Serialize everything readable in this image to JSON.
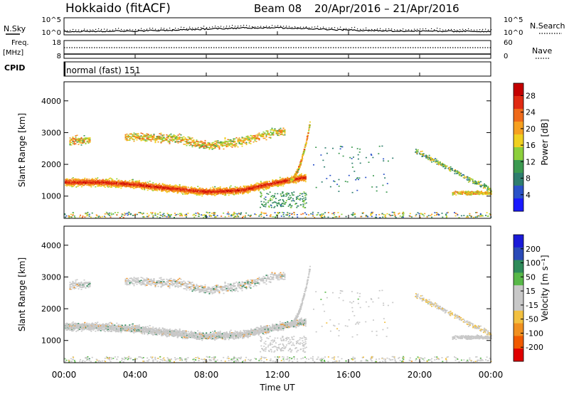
{
  "header": {
    "station": "Hokkaido (fitACF)",
    "beam": "Beam 08",
    "date_range": "20/Apr/2016 – 21/Apr/2016"
  },
  "strip_panels": {
    "nsky": {
      "label": "N.Sky",
      "right_label": "N.Search",
      "ticks_left": [
        "10^5",
        "10^0"
      ],
      "ticks_right": [
        "10^5",
        "10^0"
      ]
    },
    "freq": {
      "label_line1": "Freq.",
      "label_line2": "[MHz]",
      "right_label": "Nave",
      "ticks_left": [
        "18",
        "8"
      ],
      "ticks_right": [
        "60",
        "0"
      ]
    },
    "cpid": {
      "label": "CPID",
      "text": "normal (fast) 151"
    }
  },
  "colors": {
    "power": [
      "#1a1aff",
      "#2a52c8",
      "#2e7d6e",
      "#3c9a50",
      "#8ccf3c",
      "#f0d020",
      "#f6a020",
      "#ef6a1a",
      "#e02a12",
      "#c40000"
    ],
    "velocity": [
      "#e00000",
      "#f05a00",
      "#f09020",
      "#f2c040",
      "#c8c8c8",
      "#c8c8c8",
      "#58b848",
      "#2e8a5a",
      "#2a4ab8",
      "#1a1ad8"
    ],
    "gray": "#c8c8c8"
  },
  "chart_data": [
    {
      "type": "heatmap",
      "parameter": "Power",
      "ylabel": "Slant Range [km]",
      "yticks": [
        "1000",
        "2000",
        "3000",
        "4000"
      ],
      "ylim": [
        300,
        4600
      ],
      "xlim_hours": [
        0,
        24
      ],
      "colorbar_label": "Power [dB]",
      "colorbar_ticks": [
        "4",
        "8",
        "12",
        "16",
        "20",
        "24",
        "28"
      ],
      "colorbar_range": [
        0,
        31
      ],
      "main_band_center_km": [
        [
          0,
          1450
        ],
        [
          2,
          1450
        ],
        [
          4,
          1380
        ],
        [
          6,
          1250
        ],
        [
          8,
          1150
        ],
        [
          10,
          1200
        ],
        [
          12,
          1450
        ],
        [
          13.5,
          1600
        ]
      ],
      "upper_band_km": [
        [
          0.3,
          2750
        ],
        [
          4,
          2900
        ],
        [
          6.5,
          2800
        ],
        [
          8,
          2600
        ],
        [
          10,
          2750
        ],
        [
          12,
          3050
        ]
      ],
      "late_echo_hours": [
        20,
        24
      ]
    },
    {
      "type": "heatmap",
      "parameter": "Velocity",
      "ylabel": "Slant Range [km]",
      "yticks": [
        "1000",
        "2000",
        "3000",
        "4000"
      ],
      "ylim": [
        300,
        4600
      ],
      "xlim_hours": [
        0,
        24
      ],
      "colorbar_label": "Velocity [m s⁻¹]",
      "colorbar_ticks": [
        "200",
        "100",
        "50",
        "15",
        "-15",
        "-50",
        "-100",
        "-200"
      ],
      "colorbar_range": [
        -250,
        250
      ]
    }
  ],
  "x_axis": {
    "ticks": [
      "00:00",
      "04:00",
      "08:00",
      "12:00",
      "16:00",
      "20:00",
      "00:00"
    ],
    "label": "Time UT"
  }
}
